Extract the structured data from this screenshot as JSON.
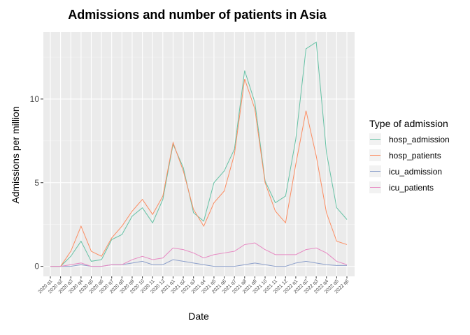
{
  "chart_data": {
    "type": "line",
    "title": "Admissions and number of patients in Asia",
    "xlabel": "Date",
    "ylabel": "Admissions per million",
    "ylim": [
      -0.6,
      14.0
    ],
    "yticks": [
      0,
      5,
      10
    ],
    "grid": true,
    "legend": {
      "title": "Type of admission",
      "position": "right"
    },
    "categories": [
      "2020 q1",
      "2020 q2",
      "2020 q3",
      "2020 q4",
      "2020 q5",
      "2020 q6",
      "2020 q7",
      "2020 q8",
      "2020 q9",
      "2020 10",
      "2020 11",
      "2020 12",
      "2021 q1",
      "2021 q2",
      "2021 q3",
      "2021 q4",
      "2021 q5",
      "2021 q6",
      "2021 q7",
      "2021 q8",
      "2021 q9",
      "2021 10",
      "2021 11",
      "2021 12",
      "2022 q1",
      "2022 q2",
      "2022 q3",
      "2022 q4",
      "2022 q5",
      "2022 q6"
    ],
    "series": [
      {
        "name": "hosp_admission",
        "color": "#66c2a5",
        "values": [
          0,
          0,
          0.6,
          1.5,
          0.3,
          0.4,
          1.6,
          1.9,
          3.0,
          3.5,
          2.6,
          4.0,
          7.3,
          5.9,
          3.2,
          2.7,
          5.0,
          5.7,
          7.0,
          11.7,
          9.8,
          5.1,
          3.8,
          4.2,
          7.6,
          13.0,
          13.4,
          6.8,
          3.5,
          2.8
        ]
      },
      {
        "name": "hosp_patients",
        "color": "#fc8d62",
        "values": [
          0,
          0,
          0.9,
          2.4,
          0.9,
          0.6,
          1.7,
          2.4,
          3.3,
          4.0,
          3.1,
          4.2,
          7.4,
          5.7,
          3.4,
          2.4,
          3.8,
          4.5,
          6.7,
          11.2,
          9.4,
          5.0,
          3.3,
          2.6,
          6.1,
          9.3,
          6.6,
          3.2,
          1.5,
          1.3
        ]
      },
      {
        "name": "icu_admission",
        "color": "#8da0cb",
        "values": [
          0,
          0,
          0,
          0.1,
          0,
          0,
          0.1,
          0.1,
          0.2,
          0.3,
          0.1,
          0.1,
          0.4,
          0.3,
          0.2,
          0.1,
          0,
          0,
          0,
          0.1,
          0.2,
          0.1,
          0,
          0,
          0.2,
          0.3,
          0.2,
          0.1,
          0.05,
          0.05
        ]
      },
      {
        "name": "icu_patients",
        "color": "#e78ac3",
        "values": [
          0,
          0,
          0.1,
          0.2,
          0,
          0,
          0.1,
          0.1,
          0.4,
          0.6,
          0.4,
          0.5,
          1.1,
          1.0,
          0.8,
          0.5,
          0.7,
          0.8,
          0.9,
          1.3,
          1.4,
          1.0,
          0.7,
          0.7,
          0.7,
          1.0,
          1.1,
          0.8,
          0.3,
          0.1
        ]
      }
    ]
  }
}
